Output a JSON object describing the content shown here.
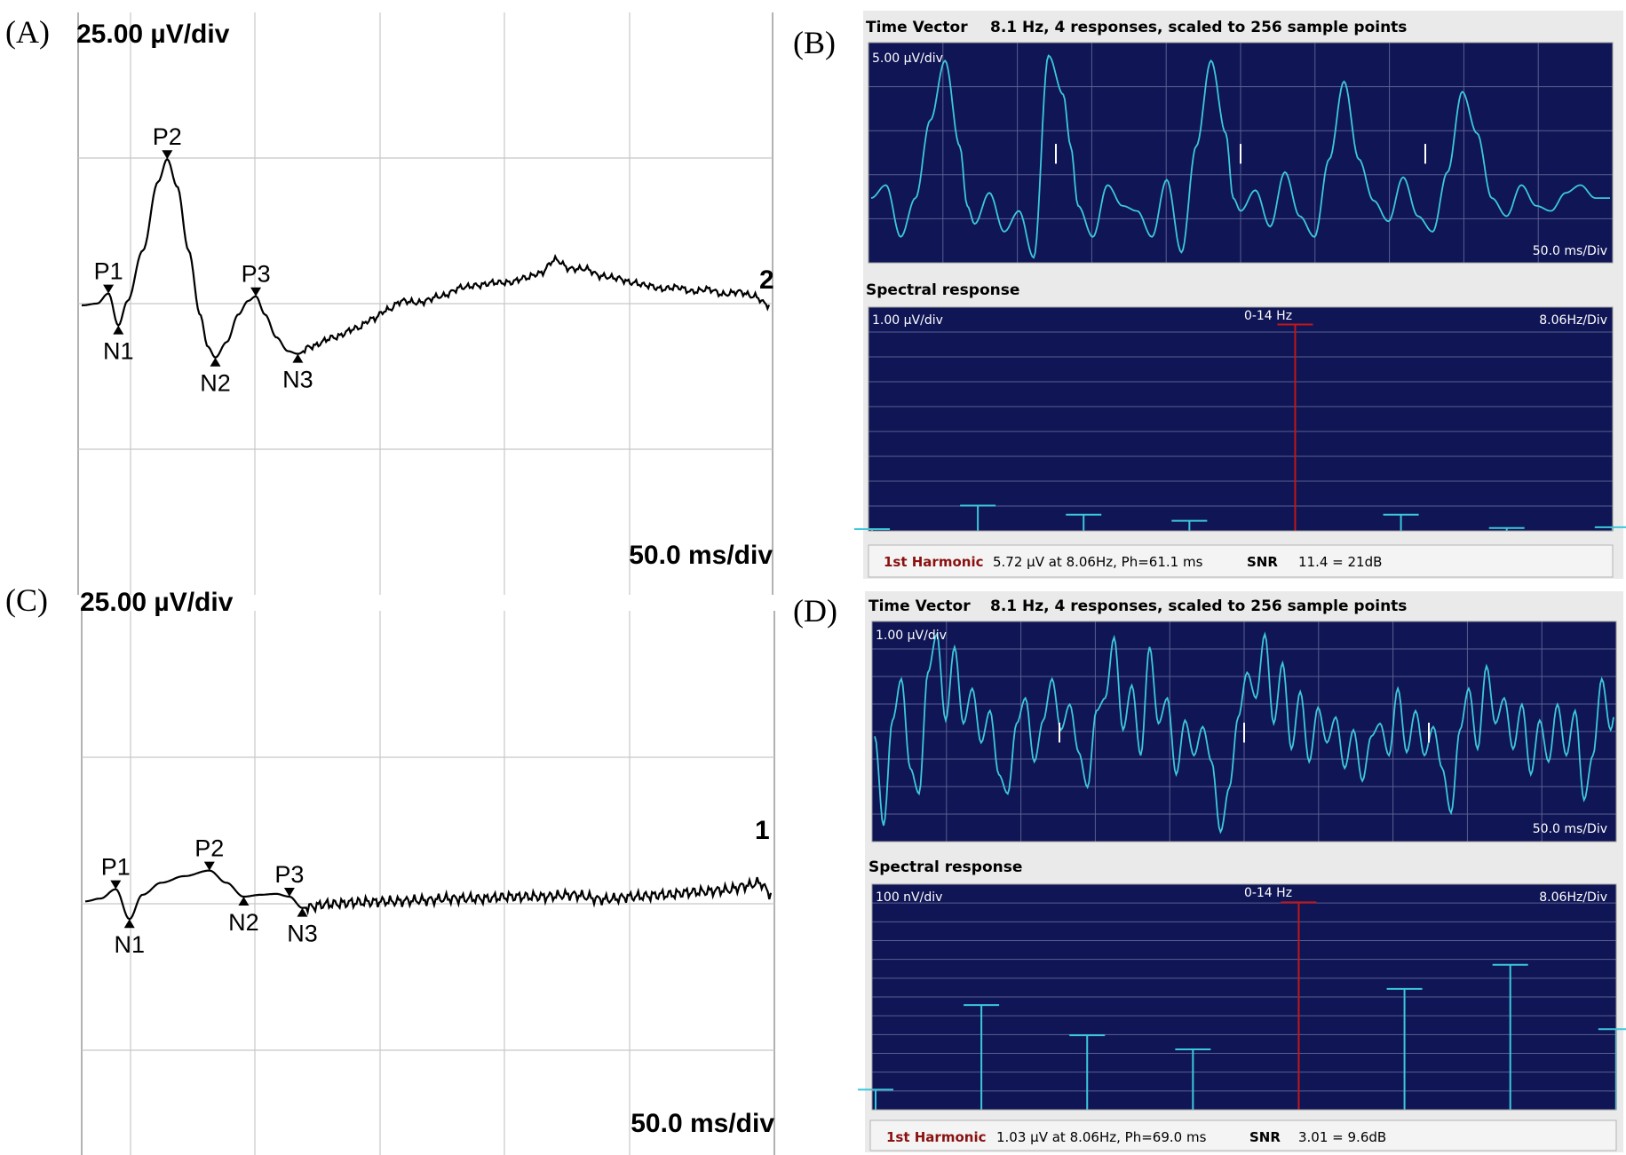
{
  "panels": {
    "A": {
      "letter": "(A)",
      "amp_scale": "25.00 µV/div",
      "time_scale": "50.0 ms/div",
      "trace_number": "2",
      "peaks": [
        {
          "label": "P1",
          "type": "pos",
          "t": 35,
          "v": 13
        },
        {
          "label": "N1",
          "type": "neg",
          "t": 48,
          "v": -22
        },
        {
          "label": "P2",
          "type": "pos",
          "t": 112,
          "v": 160
        },
        {
          "label": "N2",
          "type": "neg",
          "t": 175,
          "v": -57
        },
        {
          "label": "P3",
          "type": "pos",
          "t": 228,
          "v": 10
        },
        {
          "label": "N3",
          "type": "neg",
          "t": 283,
          "v": -53
        }
      ]
    },
    "B": {
      "letter": "(B)",
      "header_title": "Time Vector",
      "header_info": "8.1 Hz, 4 responses, scaled to 256 sample points",
      "amp_scale": "5.00 µV/div",
      "time_scale": "50.0 ms/Div",
      "spectral_title": "Spectral response",
      "spec_amp_scale": "1.00 µV/div",
      "spec_band": "0-14 Hz",
      "spec_freq_scale": "8.06Hz/Div",
      "status_harmonic": "1st Harmonic",
      "status_value": "5.72 µV at 8.06Hz, Ph=61.1 ms",
      "status_snr_label": "SNR",
      "status_snr_value": "11.4 = 21dB"
    },
    "C": {
      "letter": "(C)",
      "amp_scale": "25.00 µV/div",
      "time_scale": "50.0 ms/div",
      "trace_number": "1",
      "peaks": [
        {
          "label": "P1",
          "type": "pos",
          "t": 40,
          "v": 8
        },
        {
          "label": "N1",
          "type": "neg",
          "t": 58,
          "v": -24
        },
        {
          "label": "P2",
          "type": "pos",
          "t": 163,
          "v": 28
        },
        {
          "label": "N2",
          "type": "neg",
          "t": 208,
          "v": 0
        },
        {
          "label": "P3",
          "type": "pos",
          "t": 268,
          "v": 0
        },
        {
          "label": "N3",
          "type": "neg",
          "t": 285,
          "v": -12
        }
      ]
    },
    "D": {
      "letter": "(D)",
      "header_title": "Time Vector",
      "header_info": "8.1 Hz, 4 responses, scaled to 256 sample points",
      "amp_scale": "1.00 µV/div",
      "time_scale": "50.0 ms/Div",
      "spectral_title": "Spectral response",
      "spec_amp_scale": "100 nV/div",
      "spec_band": "0-14 Hz",
      "spec_freq_scale": "8.06Hz/Div",
      "status_harmonic": "1st Harmonic",
      "status_value": "1.03 µV at 8.06Hz, Ph=69.0 ms",
      "status_snr_label": "SNR",
      "status_snr_value": "3.01 = 9.6dB"
    }
  },
  "chart_data": [
    {
      "panel": "A",
      "type": "line",
      "xlabel": "50.0 ms/div",
      "ylabel": "25.00 µV/div",
      "x": [
        0,
        20,
        35,
        48,
        60,
        80,
        100,
        112,
        125,
        140,
        155,
        165,
        175,
        190,
        205,
        218,
        228,
        240,
        255,
        270,
        283,
        300,
        330,
        360,
        380,
        400,
        420,
        440,
        470,
        500,
        520,
        540,
        560,
        580,
        600,
        620,
        640,
        660,
        680,
        700,
        720,
        740,
        760,
        780,
        800,
        820,
        840,
        860,
        880,
        900
      ],
      "y": [
        0,
        2,
        13,
        -22,
        5,
        60,
        135,
        160,
        130,
        60,
        -10,
        -45,
        -57,
        -40,
        -10,
        5,
        10,
        -10,
        -35,
        -50,
        -53,
        -45,
        -35,
        -25,
        -15,
        -5,
        5,
        3,
        10,
        20,
        22,
        25,
        25,
        30,
        35,
        50,
        40,
        40,
        32,
        30,
        25,
        22,
        18,
        20,
        15,
        18,
        12,
        15,
        10,
        0
      ]
    },
    {
      "panel": "C",
      "type": "line",
      "xlabel": "50.0 ms/div",
      "ylabel": "25.00 µV/div",
      "x": [
        0,
        20,
        40,
        58,
        75,
        100,
        130,
        163,
        185,
        208,
        230,
        250,
        268,
        285,
        320,
        360,
        400,
        440,
        480,
        520,
        560,
        600,
        640,
        680,
        720,
        760,
        800,
        840,
        870,
        885,
        900
      ],
      "y": [
        -5,
        -2,
        8,
        -24,
        2,
        15,
        22,
        28,
        15,
        0,
        2,
        3,
        0,
        -12,
        -8,
        -6,
        -5,
        -4,
        -2,
        -2,
        0,
        0,
        2,
        -3,
        0,
        2,
        5,
        7,
        12,
        15,
        3
      ]
    },
    {
      "panel": "B",
      "type": "line",
      "title": "Time Vector",
      "ylabel": "5.00 µV/div",
      "xlabel": "50.0 ms/Div",
      "x": [
        0,
        10,
        20,
        30,
        40,
        50,
        60,
        65,
        70,
        80,
        90,
        100,
        110,
        120,
        130,
        135,
        140,
        150,
        160,
        170,
        180,
        190,
        200,
        210,
        220,
        230,
        240,
        245,
        250,
        260,
        270,
        280,
        290,
        300,
        310,
        320,
        330,
        340,
        350,
        360,
        370,
        380,
        390,
        400,
        410,
        420,
        430,
        440,
        450,
        460,
        470,
        480,
        490,
        500
      ],
      "y": [
        -0.5,
        0.0,
        -2.0,
        -0.5,
        2.5,
        4.8,
        1.5,
        -0.8,
        -1.5,
        -0.3,
        -1.8,
        -1.0,
        -2.8,
        5.0,
        3.5,
        1.5,
        -0.8,
        -2.0,
        0.0,
        -0.8,
        -1.0,
        -2.0,
        0.2,
        -2.6,
        1.5,
        4.8,
        2.0,
        -0.5,
        -1.0,
        -0.2,
        -1.6,
        0.5,
        -1.2,
        -2.0,
        1.0,
        4.0,
        1.0,
        -0.6,
        -1.4,
        0.3,
        -1.2,
        -1.8,
        0.5,
        3.6,
        2.0,
        -0.5,
        -1.2,
        0.0,
        -0.8,
        -1.0,
        -0.3,
        0.0,
        -0.5,
        -0.5
      ],
      "ylim": [
        -3,
        5.5
      ],
      "xlim": [
        0,
        500
      ]
    },
    {
      "panel": "B",
      "type": "bar",
      "title": "Spectral response",
      "ylabel": "1.00 µV/div",
      "xlabel": "8.06Hz/Div",
      "harmonics": [
        0,
        1,
        2,
        3,
        4,
        5,
        6,
        7
      ],
      "values": [
        0.05,
        0.7,
        0.45,
        0.28,
        5.72,
        0.45,
        0.08,
        0.1
      ],
      "highlight_index": 4,
      "ylim": [
        0,
        6.2
      ]
    },
    {
      "panel": "D",
      "type": "line",
      "title": "Time Vector",
      "ylabel": "1.00 µV/div",
      "xlabel": "50.0 ms/Div",
      "x": [
        0,
        6,
        12,
        18,
        24,
        30,
        36,
        42,
        48,
        54,
        60,
        66,
        72,
        78,
        84,
        90,
        96,
        102,
        108,
        114,
        120,
        126,
        132,
        138,
        144,
        150,
        156,
        162,
        168,
        174,
        180,
        186,
        192,
        198,
        204,
        210,
        216,
        222,
        228,
        234,
        240,
        246,
        252,
        258,
        264,
        270,
        276,
        282,
        288,
        294,
        300,
        306,
        312,
        318,
        324,
        330,
        336,
        342,
        348,
        354,
        360,
        366,
        372,
        378,
        384,
        390,
        396,
        402,
        408,
        414,
        420,
        426,
        432,
        438,
        444,
        450,
        456,
        462,
        468,
        474,
        480,
        486,
        492,
        498
      ],
      "y": [
        0.0,
        -2.8,
        0.5,
        1.8,
        -1.0,
        -1.8,
        2.0,
        3.2,
        0.5,
        2.8,
        0.4,
        1.5,
        -0.2,
        0.8,
        -1.2,
        -1.8,
        0.4,
        1.2,
        -0.8,
        0.5,
        1.8,
        0.2,
        1.0,
        -0.5,
        -1.6,
        0.8,
        1.2,
        3.1,
        0.2,
        1.6,
        -0.6,
        2.8,
        0.4,
        1.2,
        -1.2,
        0.5,
        -0.6,
        0.3,
        -0.8,
        -3.0,
        -1.6,
        0.6,
        2.0,
        1.2,
        3.2,
        0.4,
        2.3,
        -0.4,
        1.4,
        -0.8,
        0.9,
        -0.2,
        0.6,
        -1.0,
        0.2,
        -1.4,
        0.0,
        0.4,
        -0.6,
        1.5,
        -0.5,
        0.8,
        -0.6,
        0.3,
        -1.0,
        -2.4,
        0.2,
        1.5,
        -0.4,
        2.2,
        0.4,
        1.2,
        -0.4,
        1.0,
        -1.2,
        0.5,
        -0.8,
        1.0,
        -0.6,
        0.8,
        -2.0,
        -0.6,
        1.8,
        0.2
      ],
      "ylim": [
        -3.3,
        3.6
      ],
      "xlim": [
        0,
        500
      ]
    },
    {
      "panel": "D",
      "type": "bar",
      "title": "Spectral response",
      "ylabel": "100 nV/div",
      "xlabel": "8.06Hz/Div",
      "harmonics": [
        0,
        1,
        2,
        3,
        4,
        5,
        6,
        7
      ],
      "values": [
        0.1,
        0.52,
        0.37,
        0.3,
        1.03,
        0.6,
        0.72,
        0.4
      ],
      "highlight_index": 4,
      "ylim": [
        0,
        1.12
      ]
    }
  ],
  "colors": {
    "dark_bg": "#0f1555",
    "dark_grid": "#5a5f8f",
    "trace_cyan": "#3cc8dc",
    "spec_red": "#c01818",
    "ui_bg": "#eaeaea",
    "status_bg": "#f4f4f4"
  }
}
